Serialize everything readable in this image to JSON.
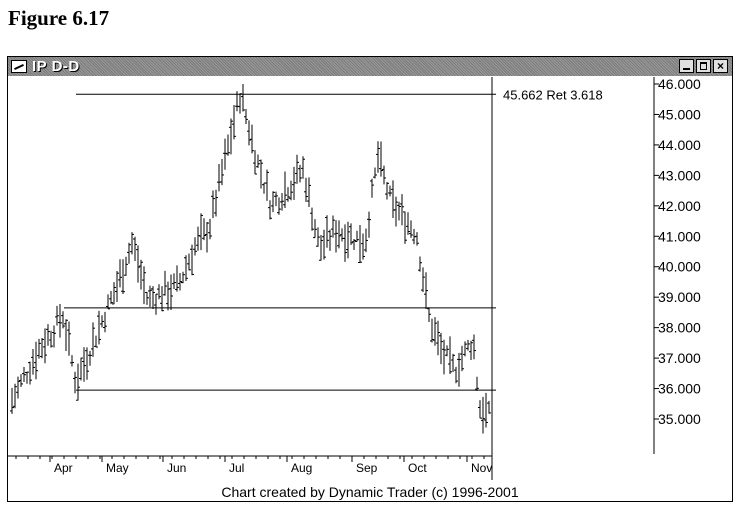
{
  "figure_label": "Figure 6.17",
  "window": {
    "title": "IP D-D",
    "close_glyph": "×",
    "credit": "Chart created by Dynamic Trader (c) 1996-2001"
  },
  "chart_data": {
    "type": "candlestick",
    "title": "IP D-D",
    "ylim": [
      34.0,
      46.2
    ],
    "y_ticks": [
      "46.000",
      "45.000",
      "44.000",
      "43.000",
      "42.000",
      "41.000",
      "40.000",
      "39.000",
      "38.000",
      "37.000",
      "36.000",
      "35.000"
    ],
    "x_ticks": [
      "Apr",
      "May",
      "Jun",
      "Jul",
      "Aug",
      "Sep",
      "Oct",
      "Nov"
    ],
    "horizontal_lines": [
      {
        "y": 45.662,
        "label": "45.662 Ret 3.618"
      },
      {
        "y": 38.65
      },
      {
        "y": 35.95
      }
    ],
    "approx_path": [
      [
        "Mar",
        35.6
      ],
      [
        "Mar",
        37.2
      ],
      [
        "Apr",
        38.4
      ],
      [
        "Apr",
        36.2
      ],
      [
        "Apr",
        37.2
      ],
      [
        "May",
        39.4
      ],
      [
        "May",
        40.8
      ],
      [
        "May",
        38.9
      ],
      [
        "Jun",
        39.4
      ],
      [
        "Jun",
        40.6
      ],
      [
        "Jun",
        41.3
      ],
      [
        "Jul",
        45.7
      ],
      [
        "Jul",
        43.6
      ],
      [
        "Jul",
        42.0
      ],
      [
        "Aug",
        43.2
      ],
      [
        "Aug",
        40.6
      ],
      [
        "Aug",
        41.2
      ],
      [
        "Sep",
        40.8
      ],
      [
        "Sep",
        43.6
      ],
      [
        "Sep",
        42.1
      ],
      [
        "Oct",
        41.1
      ],
      [
        "Oct",
        38.3
      ],
      [
        "Oct",
        37.2
      ],
      [
        "Oct",
        36.6
      ],
      [
        "Nov",
        37.6
      ],
      [
        "Nov",
        35.4
      ],
      [
        "Nov",
        35.1
      ]
    ]
  }
}
